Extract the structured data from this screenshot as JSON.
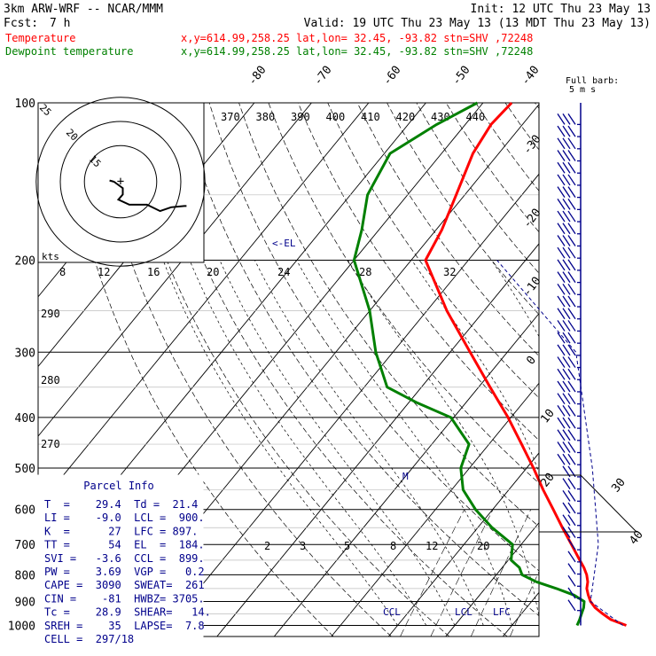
{
  "header": {
    "model": "3km ARW-WRF -- NCAR/MMM",
    "init": "Init: 12 UTC Thu 23 May 13",
    "fcst_label": "Fcst:",
    "fcst_value": "7 h",
    "valid": "Valid: 19 UTC Thu 23 May 13 (13 MDT Thu 23 May 13)"
  },
  "legend": [
    {
      "name": "Temperature",
      "location": "x,y=614.99,258.25   lat,lon= 32.45, -93.82  stn=SHV ,72248",
      "color": "#ff0000"
    },
    {
      "name": "Dewpoint temperature",
      "location": "x,y=614.99,258.25   lat,lon= 32.45, -93.82  stn=SHV ,72248",
      "color": "#008000"
    }
  ],
  "barb_legend": {
    "title": "Full barb:",
    "value": "5 m s"
  },
  "parcel_info": {
    "title": "Parcel Info",
    "lines": [
      "T  =    29.4  Td =  21.4",
      "LI =    -9.0  LCL =  900.",
      "K  =      27  LFC = 897.",
      "TT =      54  EL  =  184.",
      "SVI =   -3.6  CCL =  899.",
      "PW =    3.69  VGP =   0.2",
      "CAPE =  3090  SWEAT=  261",
      "CIN =    -81  HWBZ= 3705.",
      "Tc =    28.9  SHEAR=   14.",
      "SREH =    35  LAPSE=  7.8",
      "CELL =  297/18"
    ]
  },
  "annotations": {
    "el": "<-EL",
    "ccl": "CCL",
    "lcl": "LCL",
    "lfc": "LFC",
    "m": "M",
    "hodo_units": "kts"
  },
  "chart_data": {
    "type": "line",
    "title": "",
    "pressure_ticks": [
      100,
      200,
      300,
      400,
      500,
      600,
      700,
      800,
      900,
      1000
    ],
    "isotherm_labels": [
      -80,
      -70,
      -60,
      -50,
      -40,
      -30,
      -20,
      -10,
      0,
      10,
      20,
      30,
      40
    ],
    "theta_e_labels": [
      370,
      380,
      390,
      400,
      410,
      420,
      430,
      440
    ],
    "wind_speed_labels": [
      8,
      12,
      16,
      20,
      24,
      28,
      32
    ],
    "dry_adiabat_labels": [
      290,
      280,
      270
    ],
    "mixing_ratio_labels": [
      2,
      3,
      5,
      8,
      12,
      20
    ],
    "hodograph_ring_labels": [
      15,
      20,
      25
    ],
    "series": [
      {
        "name": "Temperature",
        "color": "#ff0000",
        "points_p_t": [
          [
            1000,
            30.0
          ],
          [
            975,
            26.5
          ],
          [
            950,
            24.2
          ],
          [
            925,
            22.0
          ],
          [
            900,
            20.3
          ],
          [
            875,
            19.0
          ],
          [
            850,
            17.8
          ],
          [
            825,
            17.0
          ],
          [
            800,
            15.8
          ],
          [
            775,
            14.3
          ],
          [
            750,
            12.5
          ],
          [
            700,
            8.8
          ],
          [
            650,
            4.8
          ],
          [
            600,
            0.6
          ],
          [
            550,
            -4.0
          ],
          [
            500,
            -8.8
          ],
          [
            450,
            -14.3
          ],
          [
            400,
            -20.5
          ],
          [
            350,
            -28.0
          ],
          [
            300,
            -36.5
          ],
          [
            250,
            -46.5
          ],
          [
            200,
            -57.5
          ],
          [
            175,
            -59.0
          ],
          [
            150,
            -61.5
          ],
          [
            125,
            -64.5
          ],
          [
            110,
            -65.5
          ],
          [
            100,
            -65.0
          ]
        ]
      },
      {
        "name": "Dewpoint temperature",
        "color": "#008000",
        "points_p_t": [
          [
            1000,
            21.4
          ],
          [
            975,
            21.0
          ],
          [
            950,
            20.5
          ],
          [
            925,
            20.0
          ],
          [
            900,
            19.2
          ],
          [
            875,
            16.5
          ],
          [
            850,
            12.5
          ],
          [
            825,
            8.0
          ],
          [
            800,
            4.5
          ],
          [
            775,
            3.0
          ],
          [
            750,
            0.5
          ],
          [
            700,
            -1.5
          ],
          [
            650,
            -7.5
          ],
          [
            600,
            -13.0
          ],
          [
            550,
            -18.0
          ],
          [
            500,
            -21.5
          ],
          [
            450,
            -23.5
          ],
          [
            400,
            -30.5
          ],
          [
            375,
            -38.5
          ],
          [
            350,
            -46.0
          ],
          [
            300,
            -53.0
          ],
          [
            250,
            -60.0
          ],
          [
            200,
            -70.0
          ],
          [
            175,
            -73.0
          ],
          [
            150,
            -77.0
          ],
          [
            125,
            -79.0
          ],
          [
            110,
            -75.0
          ],
          [
            100,
            -71.0
          ]
        ]
      }
    ],
    "hodograph_points_uv": [
      [
        -2.5,
        0.5
      ],
      [
        -1.5,
        0.0
      ],
      [
        0.5,
        -2.5
      ],
      [
        0.5,
        -5.0
      ],
      [
        -0.5,
        -7.0
      ],
      [
        2.0,
        -9.0
      ],
      [
        6.0,
        -9.0
      ],
      [
        9.0,
        -11.5
      ],
      [
        11.5,
        -10.0
      ],
      [
        14.5,
        -9.5
      ],
      [
        15.0,
        -9.5
      ]
    ]
  }
}
